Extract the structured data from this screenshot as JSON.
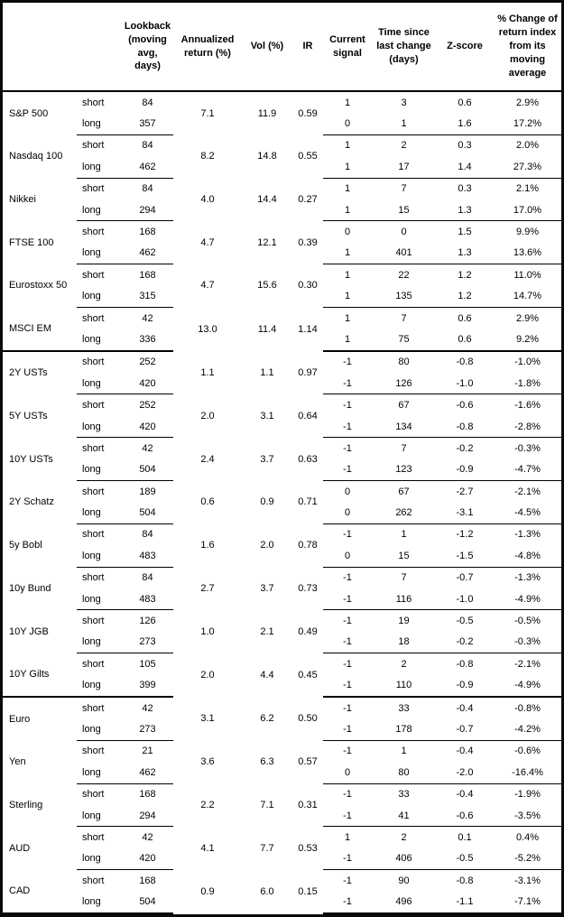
{
  "header": {
    "columns": [
      "Lookback (moving avg, days)",
      "Annualized return (%)",
      "Vol (%)",
      "IR",
      "Current signal",
      "Time since last change (days)",
      "Z-score",
      "% Change of return index from its moving average"
    ]
  },
  "period_labels": {
    "short": "short",
    "long": "long"
  },
  "sections": [
    {
      "assets": [
        {
          "name": "S&P 500",
          "annualized_return": "7.1",
          "vol": "11.9",
          "ir": "0.59",
          "short": {
            "lookback": "84",
            "signal": "1",
            "time_since_change": "3",
            "z_score": "0.6",
            "pct_change": "2.9%"
          },
          "long": {
            "lookback": "357",
            "signal": "0",
            "time_since_change": "1",
            "z_score": "1.6",
            "pct_change": "17.2%"
          }
        },
        {
          "name": "Nasdaq 100",
          "annualized_return": "8.2",
          "vol": "14.8",
          "ir": "0.55",
          "short": {
            "lookback": "84",
            "signal": "1",
            "time_since_change": "2",
            "z_score": "0.3",
            "pct_change": "2.0%"
          },
          "long": {
            "lookback": "462",
            "signal": "1",
            "time_since_change": "17",
            "z_score": "1.4",
            "pct_change": "27.3%"
          }
        },
        {
          "name": "Nikkei",
          "annualized_return": "4.0",
          "vol": "14.4",
          "ir": "0.27",
          "short": {
            "lookback": "84",
            "signal": "1",
            "time_since_change": "7",
            "z_score": "0.3",
            "pct_change": "2.1%"
          },
          "long": {
            "lookback": "294",
            "signal": "1",
            "time_since_change": "15",
            "z_score": "1.3",
            "pct_change": "17.0%"
          }
        },
        {
          "name": "FTSE 100",
          "annualized_return": "4.7",
          "vol": "12.1",
          "ir": "0.39",
          "short": {
            "lookback": "168",
            "signal": "0",
            "time_since_change": "0",
            "z_score": "1.5",
            "pct_change": "9.9%"
          },
          "long": {
            "lookback": "462",
            "signal": "1",
            "time_since_change": "401",
            "z_score": "1.3",
            "pct_change": "13.6%"
          }
        },
        {
          "name": "Eurostoxx 50",
          "annualized_return": "4.7",
          "vol": "15.6",
          "ir": "0.30",
          "short": {
            "lookback": "168",
            "signal": "1",
            "time_since_change": "22",
            "z_score": "1.2",
            "pct_change": "11.0%"
          },
          "long": {
            "lookback": "315",
            "signal": "1",
            "time_since_change": "135",
            "z_score": "1.2",
            "pct_change": "14.7%"
          }
        },
        {
          "name": "MSCI EM",
          "annualized_return": "13.0",
          "vol": "11.4",
          "ir": "1.14",
          "short": {
            "lookback": "42",
            "signal": "1",
            "time_since_change": "7",
            "z_score": "0.6",
            "pct_change": "2.9%"
          },
          "long": {
            "lookback": "336",
            "signal": "1",
            "time_since_change": "75",
            "z_score": "0.6",
            "pct_change": "9.2%"
          }
        }
      ]
    },
    {
      "assets": [
        {
          "name": "2Y USTs",
          "annualized_return": "1.1",
          "vol": "1.1",
          "ir": "0.97",
          "short": {
            "lookback": "252",
            "signal": "-1",
            "time_since_change": "80",
            "z_score": "-0.8",
            "pct_change": "-1.0%"
          },
          "long": {
            "lookback": "420",
            "signal": "-1",
            "time_since_change": "126",
            "z_score": "-1.0",
            "pct_change": "-1.8%"
          }
        },
        {
          "name": "5Y USTs",
          "annualized_return": "2.0",
          "vol": "3.1",
          "ir": "0.64",
          "short": {
            "lookback": "252",
            "signal": "-1",
            "time_since_change": "67",
            "z_score": "-0.6",
            "pct_change": "-1.6%"
          },
          "long": {
            "lookback": "420",
            "signal": "-1",
            "time_since_change": "134",
            "z_score": "-0.8",
            "pct_change": "-2.8%"
          }
        },
        {
          "name": "10Y USTs",
          "annualized_return": "2.4",
          "vol": "3.7",
          "ir": "0.63",
          "short": {
            "lookback": "42",
            "signal": "-1",
            "time_since_change": "7",
            "z_score": "-0.2",
            "pct_change": "-0.3%"
          },
          "long": {
            "lookback": "504",
            "signal": "-1",
            "time_since_change": "123",
            "z_score": "-0.9",
            "pct_change": "-4.7%"
          }
        },
        {
          "name": "2Y Schatz",
          "annualized_return": "0.6",
          "vol": "0.9",
          "ir": "0.71",
          "short": {
            "lookback": "189",
            "signal": "0",
            "time_since_change": "67",
            "z_score": "-2.7",
            "pct_change": "-2.1%"
          },
          "long": {
            "lookback": "504",
            "signal": "0",
            "time_since_change": "262",
            "z_score": "-3.1",
            "pct_change": "-4.5%"
          }
        },
        {
          "name": "5y Bobl",
          "annualized_return": "1.6",
          "vol": "2.0",
          "ir": "0.78",
          "short": {
            "lookback": "84",
            "signal": "-1",
            "time_since_change": "1",
            "z_score": "-1.2",
            "pct_change": "-1.3%"
          },
          "long": {
            "lookback": "483",
            "signal": "0",
            "time_since_change": "15",
            "z_score": "-1.5",
            "pct_change": "-4.8%"
          }
        },
        {
          "name": "10y Bund",
          "annualized_return": "2.7",
          "vol": "3.7",
          "ir": "0.73",
          "short": {
            "lookback": "84",
            "signal": "-1",
            "time_since_change": "7",
            "z_score": "-0.7",
            "pct_change": "-1.3%"
          },
          "long": {
            "lookback": "483",
            "signal": "-1",
            "time_since_change": "116",
            "z_score": "-1.0",
            "pct_change": "-4.9%"
          }
        },
        {
          "name": "10Y JGB",
          "annualized_return": "1.0",
          "vol": "2.1",
          "ir": "0.49",
          "short": {
            "lookback": "126",
            "signal": "-1",
            "time_since_change": "19",
            "z_score": "-0.5",
            "pct_change": "-0.5%"
          },
          "long": {
            "lookback": "273",
            "signal": "-1",
            "time_since_change": "18",
            "z_score": "-0.2",
            "pct_change": "-0.3%"
          }
        },
        {
          "name": "10Y Gilts",
          "annualized_return": "2.0",
          "vol": "4.4",
          "ir": "0.45",
          "short": {
            "lookback": "105",
            "signal": "-1",
            "time_since_change": "2",
            "z_score": "-0.8",
            "pct_change": "-2.1%"
          },
          "long": {
            "lookback": "399",
            "signal": "-1",
            "time_since_change": "110",
            "z_score": "-0.9",
            "pct_change": "-4.9%"
          }
        }
      ]
    },
    {
      "assets": [
        {
          "name": "Euro",
          "annualized_return": "3.1",
          "vol": "6.2",
          "ir": "0.50",
          "short": {
            "lookback": "42",
            "signal": "-1",
            "time_since_change": "33",
            "z_score": "-0.4",
            "pct_change": "-0.8%"
          },
          "long": {
            "lookback": "273",
            "signal": "-1",
            "time_since_change": "178",
            "z_score": "-0.7",
            "pct_change": "-4.2%"
          }
        },
        {
          "name": "Yen",
          "annualized_return": "3.6",
          "vol": "6.3",
          "ir": "0.57",
          "short": {
            "lookback": "21",
            "signal": "-1",
            "time_since_change": "1",
            "z_score": "-0.4",
            "pct_change": "-0.6%"
          },
          "long": {
            "lookback": "462",
            "signal": "0",
            "time_since_change": "80",
            "z_score": "-2.0",
            "pct_change": "-16.4%"
          }
        },
        {
          "name": "Sterling",
          "annualized_return": "2.2",
          "vol": "7.1",
          "ir": "0.31",
          "short": {
            "lookback": "168",
            "signal": "-1",
            "time_since_change": "33",
            "z_score": "-0.4",
            "pct_change": "-1.9%"
          },
          "long": {
            "lookback": "294",
            "signal": "-1",
            "time_since_change": "41",
            "z_score": "-0.6",
            "pct_change": "-3.5%"
          }
        },
        {
          "name": "AUD",
          "annualized_return": "4.1",
          "vol": "7.7",
          "ir": "0.53",
          "short": {
            "lookback": "42",
            "signal": "1",
            "time_since_change": "2",
            "z_score": "0.1",
            "pct_change": "0.4%"
          },
          "long": {
            "lookback": "420",
            "signal": "-1",
            "time_since_change": "406",
            "z_score": "-0.5",
            "pct_change": "-5.2%"
          }
        },
        {
          "name": "CAD",
          "annualized_return": "0.9",
          "vol": "6.0",
          "ir": "0.15",
          "short": {
            "lookback": "168",
            "signal": "-1",
            "time_since_change": "90",
            "z_score": "-0.8",
            "pct_change": "-3.1%"
          },
          "long": {
            "lookback": "504",
            "signal": "-1",
            "time_since_change": "496",
            "z_score": "-1.1",
            "pct_change": "-7.1%"
          }
        }
      ]
    }
  ],
  "styles": {
    "border_color": "#000000",
    "background": "#ffffff",
    "text_color": "#000000"
  }
}
